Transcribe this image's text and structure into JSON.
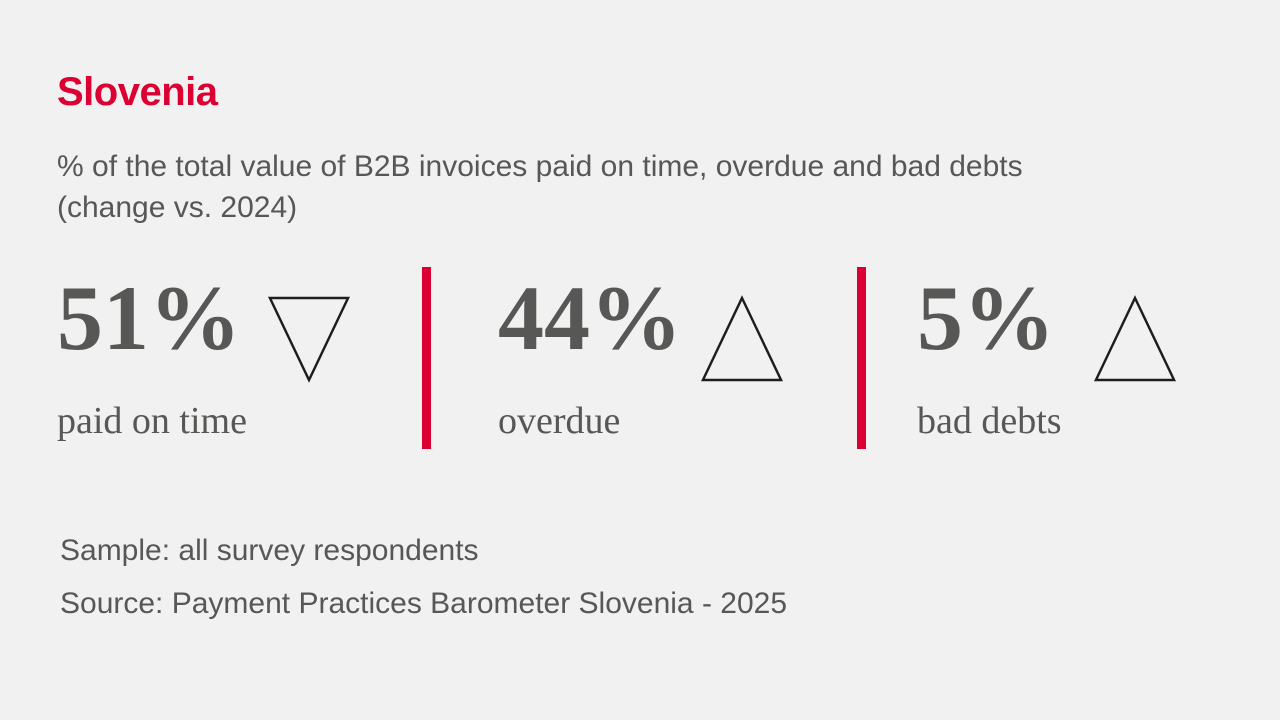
{
  "page": {
    "background_color": "#f1f1f1",
    "accent_red": "#dc0032",
    "text_gray": "#575756",
    "triangle_stroke": "#1d1d1b"
  },
  "header": {
    "title": "Slovenia",
    "subtitle_line1": "% of the total value of B2B invoices paid on time, overdue and bad debts",
    "subtitle_line2": "(change vs. 2024)"
  },
  "stats": [
    {
      "value": "51%",
      "label": "paid on time",
      "direction": "down"
    },
    {
      "value": "44%",
      "label": "overdue",
      "direction": "up"
    },
    {
      "value": "5%",
      "label": "bad debts",
      "direction": "up"
    }
  ],
  "footer": {
    "sample": "Sample: all survey respondents",
    "source": "Source: Payment Practices Barometer Slovenia - 2025"
  },
  "chart_data": {
    "type": "table",
    "title": "Slovenia",
    "subtitle": "% of the total value of B2B invoices paid on time, overdue and bad debts (change vs. 2024)",
    "categories": [
      "paid on time",
      "overdue",
      "bad debts"
    ],
    "values": [
      51,
      44,
      5
    ],
    "unit": "%",
    "change_vs_2024": [
      "down",
      "up",
      "up"
    ],
    "sample": "Sample: all survey respondents",
    "source": "Source: Payment Practices Barometer Slovenia - 2025"
  }
}
